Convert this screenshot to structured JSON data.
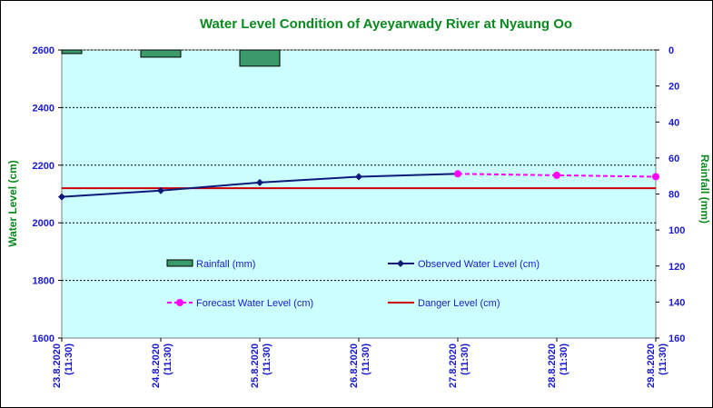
{
  "chart_data": {
    "type": "line",
    "title": "Water Level Condition of Ayeyarwady River at Nyaung Oo",
    "ylabel_left": "Water Level (cm)",
    "ylabel_right": "Rainfall (mm)",
    "ylim_left": [
      1600,
      2600
    ],
    "ylim_right": [
      0,
      160
    ],
    "yticks_left": [
      "1600",
      "1800",
      "2000",
      "2200",
      "2400",
      "2600"
    ],
    "yticks_right": [
      "0",
      "20",
      "40",
      "60",
      "80",
      "100",
      "120",
      "140",
      "160"
    ],
    "categories": [
      [
        "23.8.2020",
        "(11:30)"
      ],
      [
        "24.8.2020",
        "(11:30)"
      ],
      [
        "25.8.2020",
        "(11:30)"
      ],
      [
        "26.8.2020",
        "(11:30)"
      ],
      [
        "27.8.2020",
        "(11:30)"
      ],
      [
        "28.8.2020",
        "(11:30)"
      ],
      [
        "29.8.2020",
        "(11:30)"
      ]
    ],
    "series": [
      {
        "name": "Rainfall (mm)",
        "kind": "bar",
        "axis": "right",
        "color": "#3a9a6a",
        "values": [
          2,
          4,
          9,
          null,
          null,
          null,
          null
        ]
      },
      {
        "name": "Observed Water Level (cm)",
        "kind": "line",
        "axis": "left",
        "color": "#0d1a7a",
        "values": [
          2090,
          2112,
          2140,
          2160,
          2170,
          null,
          null
        ]
      },
      {
        "name": "Forecast Water Level (cm)",
        "kind": "line-dashed",
        "axis": "left",
        "color": "#ff00ff",
        "values": [
          null,
          null,
          null,
          null,
          2170,
          2165,
          2160
        ]
      },
      {
        "name": "Danger Level (cm)",
        "kind": "hline",
        "axis": "left",
        "color": "#cc0000",
        "value": 2120
      }
    ],
    "grid": true,
    "legend_position": "inside-bottom"
  }
}
